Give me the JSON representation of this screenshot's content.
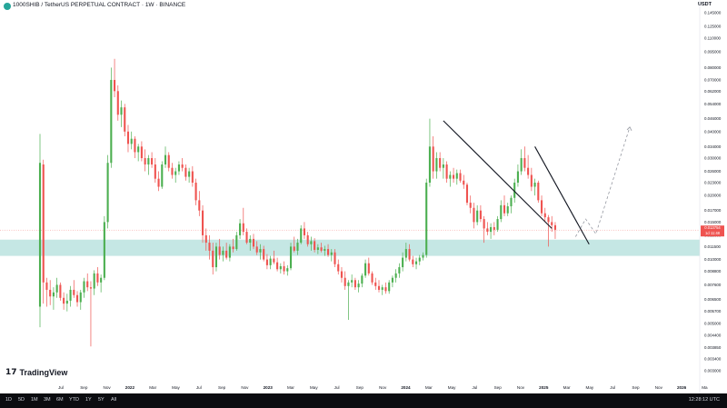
{
  "header": {
    "title": "1000SHIB / TetherUS PERPETUAL CONTRACT · 1W · BINANCE",
    "currency": "USDT"
  },
  "logo": {
    "mark": "17",
    "text": "TradingView"
  },
  "footer": {
    "timeframes": [
      "1D",
      "5D",
      "1M",
      "3M",
      "6M",
      "YTD",
      "1Y",
      "5Y",
      "All"
    ],
    "clock": "12:28:12 UTC"
  },
  "price_tag": {
    "price": "0.013754",
    "countdown": "1d 11:48"
  },
  "colors": {
    "up": "#26a69a",
    "up_body": "#4caf50",
    "down": "#ef5350",
    "zone": "#b2dfdb",
    "accent": "#2962ff"
  },
  "chart_data": {
    "type": "candlestick",
    "y_scale": "log",
    "ylim": [
      0.00288,
      0.145
    ],
    "price_ticks": [
      "0.145000",
      "0.125000",
      "0.110000",
      "0.095000",
      "0.080000",
      "0.070000",
      "0.062000",
      "0.054000",
      "0.046000",
      "0.040000",
      "0.034000",
      "0.030000",
      "0.026000",
      "0.023000",
      "0.020000",
      "0.017000",
      "0.015000",
      "0.013000",
      "0.011500",
      "0.010000",
      "0.008800",
      "0.007600",
      "0.006500",
      "0.005700",
      "0.005000",
      "0.004400",
      "0.003850",
      "0.003400",
      "0.003000"
    ],
    "time_labels": [
      "Jul",
      "Sep",
      "Nov",
      "2022",
      "Mar",
      "May",
      "Jul",
      "Sep",
      "Nov",
      "2023",
      "Mar",
      "May",
      "Jul",
      "Sep",
      "Nov",
      "2024",
      "Mar",
      "May",
      "Jul",
      "Sep",
      "Nov",
      "2025",
      "Mar",
      "May",
      "Jul",
      "Sep",
      "Nov",
      "2026",
      "Ma"
    ],
    "support_zone": [
      0.0104,
      0.0124
    ],
    "last_price": 0.013754,
    "candles": [
      {
        "o": 0.006,
        "h": 0.039,
        "l": 0.0048,
        "c": 0.0285
      },
      {
        "o": 0.028,
        "h": 0.0295,
        "l": 0.0062,
        "c": 0.0078
      },
      {
        "o": 0.0078,
        "h": 0.0082,
        "l": 0.006,
        "c": 0.0072
      },
      {
        "o": 0.0072,
        "h": 0.008,
        "l": 0.0061,
        "c": 0.0067
      },
      {
        "o": 0.0067,
        "h": 0.0074,
        "l": 0.0058,
        "c": 0.007
      },
      {
        "o": 0.007,
        "h": 0.0082,
        "l": 0.0066,
        "c": 0.0076
      },
      {
        "o": 0.0076,
        "h": 0.0078,
        "l": 0.0064,
        "c": 0.0066
      },
      {
        "o": 0.0066,
        "h": 0.007,
        "l": 0.0058,
        "c": 0.0062
      },
      {
        "o": 0.0062,
        "h": 0.0069,
        "l": 0.0057,
        "c": 0.0064
      },
      {
        "o": 0.0064,
        "h": 0.0075,
        "l": 0.006,
        "c": 0.0072
      },
      {
        "o": 0.0072,
        "h": 0.008,
        "l": 0.0066,
        "c": 0.0068
      },
      {
        "o": 0.0068,
        "h": 0.0071,
        "l": 0.006,
        "c": 0.0063
      },
      {
        "o": 0.0063,
        "h": 0.0072,
        "l": 0.0058,
        "c": 0.007
      },
      {
        "o": 0.007,
        "h": 0.0082,
        "l": 0.0066,
        "c": 0.0079
      },
      {
        "o": 0.0079,
        "h": 0.0086,
        "l": 0.0071,
        "c": 0.0074
      },
      {
        "o": 0.0074,
        "h": 0.0079,
        "l": 0.0039,
        "c": 0.0073
      },
      {
        "o": 0.0073,
        "h": 0.0089,
        "l": 0.0068,
        "c": 0.0086
      },
      {
        "o": 0.0086,
        "h": 0.0092,
        "l": 0.0075,
        "c": 0.0078
      },
      {
        "o": 0.0078,
        "h": 0.0085,
        "l": 0.007,
        "c": 0.0082
      },
      {
        "o": 0.0082,
        "h": 0.016,
        "l": 0.008,
        "c": 0.015
      },
      {
        "o": 0.015,
        "h": 0.031,
        "l": 0.014,
        "c": 0.0285
      },
      {
        "o": 0.0285,
        "h": 0.08,
        "l": 0.027,
        "c": 0.07
      },
      {
        "o": 0.07,
        "h": 0.088,
        "l": 0.058,
        "c": 0.062
      },
      {
        "o": 0.062,
        "h": 0.066,
        "l": 0.045,
        "c": 0.048
      },
      {
        "o": 0.048,
        "h": 0.056,
        "l": 0.042,
        "c": 0.052
      },
      {
        "o": 0.052,
        "h": 0.054,
        "l": 0.038,
        "c": 0.04
      },
      {
        "o": 0.04,
        "h": 0.043,
        "l": 0.032,
        "c": 0.035
      },
      {
        "o": 0.035,
        "h": 0.04,
        "l": 0.033,
        "c": 0.037
      },
      {
        "o": 0.037,
        "h": 0.038,
        "l": 0.03,
        "c": 0.032
      },
      {
        "o": 0.032,
        "h": 0.035,
        "l": 0.029,
        "c": 0.034
      },
      {
        "o": 0.034,
        "h": 0.036,
        "l": 0.029,
        "c": 0.03
      },
      {
        "o": 0.03,
        "h": 0.033,
        "l": 0.026,
        "c": 0.028
      },
      {
        "o": 0.028,
        "h": 0.031,
        "l": 0.025,
        "c": 0.03
      },
      {
        "o": 0.03,
        "h": 0.032,
        "l": 0.027,
        "c": 0.028
      },
      {
        "o": 0.028,
        "h": 0.03,
        "l": 0.023,
        "c": 0.024
      },
      {
        "o": 0.024,
        "h": 0.026,
        "l": 0.021,
        "c": 0.022
      },
      {
        "o": 0.022,
        "h": 0.029,
        "l": 0.0215,
        "c": 0.028
      },
      {
        "o": 0.028,
        "h": 0.034,
        "l": 0.027,
        "c": 0.031
      },
      {
        "o": 0.031,
        "h": 0.032,
        "l": 0.026,
        "c": 0.027
      },
      {
        "o": 0.027,
        "h": 0.0285,
        "l": 0.024,
        "c": 0.025
      },
      {
        "o": 0.025,
        "h": 0.027,
        "l": 0.023,
        "c": 0.026
      },
      {
        "o": 0.026,
        "h": 0.029,
        "l": 0.025,
        "c": 0.028
      },
      {
        "o": 0.028,
        "h": 0.03,
        "l": 0.026,
        "c": 0.027
      },
      {
        "o": 0.027,
        "h": 0.028,
        "l": 0.0235,
        "c": 0.0245
      },
      {
        "o": 0.0245,
        "h": 0.027,
        "l": 0.023,
        "c": 0.026
      },
      {
        "o": 0.026,
        "h": 0.0275,
        "l": 0.022,
        "c": 0.023
      },
      {
        "o": 0.023,
        "h": 0.024,
        "l": 0.018,
        "c": 0.019
      },
      {
        "o": 0.019,
        "h": 0.021,
        "l": 0.016,
        "c": 0.017
      },
      {
        "o": 0.017,
        "h": 0.018,
        "l": 0.012,
        "c": 0.013
      },
      {
        "o": 0.013,
        "h": 0.014,
        "l": 0.011,
        "c": 0.012
      },
      {
        "o": 0.012,
        "h": 0.013,
        "l": 0.01,
        "c": 0.011
      },
      {
        "o": 0.011,
        "h": 0.012,
        "l": 0.0085,
        "c": 0.0092
      },
      {
        "o": 0.0092,
        "h": 0.012,
        "l": 0.0088,
        "c": 0.0115
      },
      {
        "o": 0.0115,
        "h": 0.0125,
        "l": 0.01,
        "c": 0.0105
      },
      {
        "o": 0.0105,
        "h": 0.0115,
        "l": 0.0098,
        "c": 0.011
      },
      {
        "o": 0.011,
        "h": 0.012,
        "l": 0.01,
        "c": 0.0102
      },
      {
        "o": 0.0102,
        "h": 0.0118,
        "l": 0.0098,
        "c": 0.0115
      },
      {
        "o": 0.0115,
        "h": 0.0125,
        "l": 0.0108,
        "c": 0.0112
      },
      {
        "o": 0.0112,
        "h": 0.0135,
        "l": 0.011,
        "c": 0.013
      },
      {
        "o": 0.013,
        "h": 0.0155,
        "l": 0.0125,
        "c": 0.0148
      },
      {
        "o": 0.0148,
        "h": 0.0175,
        "l": 0.013,
        "c": 0.0135
      },
      {
        "o": 0.0135,
        "h": 0.014,
        "l": 0.0118,
        "c": 0.012
      },
      {
        "o": 0.012,
        "h": 0.013,
        "l": 0.011,
        "c": 0.0125
      },
      {
        "o": 0.0125,
        "h": 0.0132,
        "l": 0.0112,
        "c": 0.0115
      },
      {
        "o": 0.0115,
        "h": 0.0122,
        "l": 0.0105,
        "c": 0.0108
      },
      {
        "o": 0.0108,
        "h": 0.0118,
        "l": 0.01,
        "c": 0.0112
      },
      {
        "o": 0.0112,
        "h": 0.0116,
        "l": 0.0098,
        "c": 0.01
      },
      {
        "o": 0.01,
        "h": 0.0106,
        "l": 0.009,
        "c": 0.0094
      },
      {
        "o": 0.0094,
        "h": 0.0104,
        "l": 0.009,
        "c": 0.0101
      },
      {
        "o": 0.0101,
        "h": 0.011,
        "l": 0.0095,
        "c": 0.0097
      },
      {
        "o": 0.0097,
        "h": 0.0102,
        "l": 0.0088,
        "c": 0.009
      },
      {
        "o": 0.009,
        "h": 0.0096,
        "l": 0.0086,
        "c": 0.0093
      },
      {
        "o": 0.0093,
        "h": 0.0098,
        "l": 0.0085,
        "c": 0.0088
      },
      {
        "o": 0.0088,
        "h": 0.0094,
        "l": 0.0084,
        "c": 0.0091
      },
      {
        "o": 0.0091,
        "h": 0.012,
        "l": 0.0089,
        "c": 0.0115
      },
      {
        "o": 0.0115,
        "h": 0.0128,
        "l": 0.0108,
        "c": 0.011
      },
      {
        "o": 0.011,
        "h": 0.0125,
        "l": 0.0105,
        "c": 0.012
      },
      {
        "o": 0.012,
        "h": 0.0145,
        "l": 0.0118,
        "c": 0.014
      },
      {
        "o": 0.014,
        "h": 0.015,
        "l": 0.0125,
        "c": 0.013
      },
      {
        "o": 0.013,
        "h": 0.0135,
        "l": 0.0115,
        "c": 0.0118
      },
      {
        "o": 0.0118,
        "h": 0.0128,
        "l": 0.011,
        "c": 0.0122
      },
      {
        "o": 0.0122,
        "h": 0.0126,
        "l": 0.0108,
        "c": 0.0111
      },
      {
        "o": 0.0111,
        "h": 0.0118,
        "l": 0.0106,
        "c": 0.0114
      },
      {
        "o": 0.0114,
        "h": 0.012,
        "l": 0.0108,
        "c": 0.011
      },
      {
        "o": 0.011,
        "h": 0.0116,
        "l": 0.0104,
        "c": 0.0112
      },
      {
        "o": 0.0112,
        "h": 0.0118,
        "l": 0.0103,
        "c": 0.0105
      },
      {
        "o": 0.0105,
        "h": 0.0112,
        "l": 0.0098,
        "c": 0.0108
      },
      {
        "o": 0.0108,
        "h": 0.0112,
        "l": 0.0092,
        "c": 0.0095
      },
      {
        "o": 0.0095,
        "h": 0.01,
        "l": 0.0085,
        "c": 0.0088
      },
      {
        "o": 0.0088,
        "h": 0.0092,
        "l": 0.0078,
        "c": 0.0082
      },
      {
        "o": 0.0082,
        "h": 0.0088,
        "l": 0.0072,
        "c": 0.0075
      },
      {
        "o": 0.0075,
        "h": 0.008,
        "l": 0.0052,
        "c": 0.0078
      },
      {
        "o": 0.0078,
        "h": 0.0085,
        "l": 0.0074,
        "c": 0.008
      },
      {
        "o": 0.008,
        "h": 0.0082,
        "l": 0.0072,
        "c": 0.0074
      },
      {
        "o": 0.0074,
        "h": 0.008,
        "l": 0.007,
        "c": 0.0077
      },
      {
        "o": 0.0077,
        "h": 0.0086,
        "l": 0.0074,
        "c": 0.0084
      },
      {
        "o": 0.0084,
        "h": 0.01,
        "l": 0.0082,
        "c": 0.0096
      },
      {
        "o": 0.0096,
        "h": 0.0102,
        "l": 0.0084,
        "c": 0.0086
      },
      {
        "o": 0.0086,
        "h": 0.0088,
        "l": 0.0076,
        "c": 0.0078
      },
      {
        "o": 0.0078,
        "h": 0.0082,
        "l": 0.0072,
        "c": 0.0075
      },
      {
        "o": 0.0075,
        "h": 0.008,
        "l": 0.007,
        "c": 0.0072
      },
      {
        "o": 0.0072,
        "h": 0.0076,
        "l": 0.0068,
        "c": 0.0074
      },
      {
        "o": 0.0074,
        "h": 0.0078,
        "l": 0.0069,
        "c": 0.0071
      },
      {
        "o": 0.0071,
        "h": 0.008,
        "l": 0.0069,
        "c": 0.0078
      },
      {
        "o": 0.0078,
        "h": 0.0084,
        "l": 0.0074,
        "c": 0.0082
      },
      {
        "o": 0.0082,
        "h": 0.009,
        "l": 0.0078,
        "c": 0.0086
      },
      {
        "o": 0.0086,
        "h": 0.0096,
        "l": 0.0082,
        "c": 0.0092
      },
      {
        "o": 0.0092,
        "h": 0.0108,
        "l": 0.0088,
        "c": 0.0102
      },
      {
        "o": 0.0102,
        "h": 0.012,
        "l": 0.0098,
        "c": 0.0112
      },
      {
        "o": 0.0112,
        "h": 0.0118,
        "l": 0.0098,
        "c": 0.01
      },
      {
        "o": 0.01,
        "h": 0.0104,
        "l": 0.0092,
        "c": 0.0095
      },
      {
        "o": 0.0095,
        "h": 0.0102,
        "l": 0.009,
        "c": 0.0098
      },
      {
        "o": 0.0098,
        "h": 0.0105,
        "l": 0.0094,
        "c": 0.0102
      },
      {
        "o": 0.0102,
        "h": 0.0108,
        "l": 0.0099,
        "c": 0.0105
      },
      {
        "o": 0.0105,
        "h": 0.024,
        "l": 0.0102,
        "c": 0.023
      },
      {
        "o": 0.023,
        "h": 0.046,
        "l": 0.022,
        "c": 0.034
      },
      {
        "o": 0.034,
        "h": 0.038,
        "l": 0.024,
        "c": 0.026
      },
      {
        "o": 0.026,
        "h": 0.032,
        "l": 0.024,
        "c": 0.03
      },
      {
        "o": 0.03,
        "h": 0.032,
        "l": 0.026,
        "c": 0.027
      },
      {
        "o": 0.027,
        "h": 0.03,
        "l": 0.024,
        "c": 0.028
      },
      {
        "o": 0.028,
        "h": 0.029,
        "l": 0.023,
        "c": 0.024
      },
      {
        "o": 0.024,
        "h": 0.026,
        "l": 0.022,
        "c": 0.025
      },
      {
        "o": 0.025,
        "h": 0.027,
        "l": 0.023,
        "c": 0.024
      },
      {
        "o": 0.024,
        "h": 0.0265,
        "l": 0.0225,
        "c": 0.0255
      },
      {
        "o": 0.0255,
        "h": 0.0265,
        "l": 0.023,
        "c": 0.0235
      },
      {
        "o": 0.0235,
        "h": 0.025,
        "l": 0.0215,
        "c": 0.0225
      },
      {
        "o": 0.0225,
        "h": 0.023,
        "l": 0.018,
        "c": 0.0185
      },
      {
        "o": 0.0185,
        "h": 0.02,
        "l": 0.0165,
        "c": 0.0175
      },
      {
        "o": 0.0175,
        "h": 0.0185,
        "l": 0.014,
        "c": 0.015
      },
      {
        "o": 0.015,
        "h": 0.018,
        "l": 0.0145,
        "c": 0.017
      },
      {
        "o": 0.017,
        "h": 0.018,
        "l": 0.015,
        "c": 0.0155
      },
      {
        "o": 0.0155,
        "h": 0.016,
        "l": 0.012,
        "c": 0.014
      },
      {
        "o": 0.014,
        "h": 0.015,
        "l": 0.013,
        "c": 0.0135
      },
      {
        "o": 0.0135,
        "h": 0.0148,
        "l": 0.0125,
        "c": 0.0142
      },
      {
        "o": 0.0142,
        "h": 0.015,
        "l": 0.013,
        "c": 0.0138
      },
      {
        "o": 0.0138,
        "h": 0.016,
        "l": 0.0135,
        "c": 0.0155
      },
      {
        "o": 0.0155,
        "h": 0.019,
        "l": 0.015,
        "c": 0.018
      },
      {
        "o": 0.018,
        "h": 0.02,
        "l": 0.016,
        "c": 0.0165
      },
      {
        "o": 0.0165,
        "h": 0.0185,
        "l": 0.016,
        "c": 0.0178
      },
      {
        "o": 0.0178,
        "h": 0.02,
        "l": 0.0165,
        "c": 0.0195
      },
      {
        "o": 0.0195,
        "h": 0.024,
        "l": 0.0185,
        "c": 0.023
      },
      {
        "o": 0.023,
        "h": 0.028,
        "l": 0.022,
        "c": 0.026
      },
      {
        "o": 0.026,
        "h": 0.033,
        "l": 0.025,
        "c": 0.03
      },
      {
        "o": 0.03,
        "h": 0.034,
        "l": 0.026,
        "c": 0.027
      },
      {
        "o": 0.027,
        "h": 0.031,
        "l": 0.024,
        "c": 0.025
      },
      {
        "o": 0.025,
        "h": 0.027,
        "l": 0.021,
        "c": 0.022
      },
      {
        "o": 0.022,
        "h": 0.024,
        "l": 0.02,
        "c": 0.023
      },
      {
        "o": 0.023,
        "h": 0.0235,
        "l": 0.0185,
        "c": 0.019
      },
      {
        "o": 0.019,
        "h": 0.02,
        "l": 0.016,
        "c": 0.0165
      },
      {
        "o": 0.0165,
        "h": 0.0175,
        "l": 0.015,
        "c": 0.0158
      },
      {
        "o": 0.0158,
        "h": 0.0162,
        "l": 0.0115,
        "c": 0.015
      },
      {
        "o": 0.015,
        "h": 0.016,
        "l": 0.0135,
        "c": 0.0145
      },
      {
        "o": 0.0145,
        "h": 0.015,
        "l": 0.0125,
        "c": 0.0138
      }
    ],
    "trendlines": [
      {
        "from": {
          "i": 119,
          "p": 0.045
        },
        "to": {
          "i": 151,
          "p": 0.014
        }
      },
      {
        "from": {
          "i": 146,
          "p": 0.034
        },
        "to": {
          "i": 162,
          "p": 0.0118
        }
      }
    ],
    "projection": [
      {
        "i": 158,
        "p": 0.0128
      },
      {
        "i": 161,
        "p": 0.0155
      },
      {
        "i": 164,
        "p": 0.0132
      },
      {
        "i": 174,
        "p": 0.042
      }
    ]
  }
}
